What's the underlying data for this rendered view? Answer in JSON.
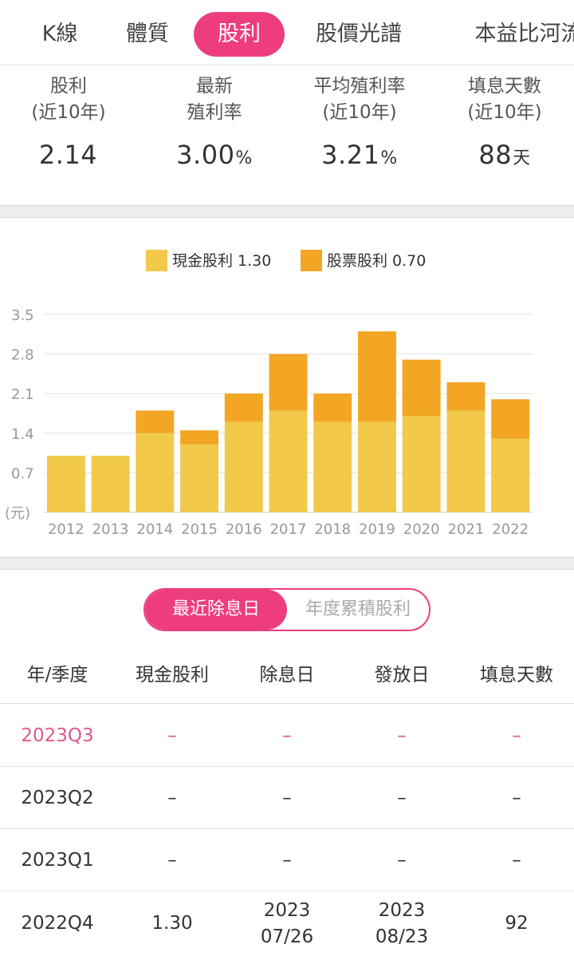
{
  "tabs": [
    {
      "label": "K線",
      "active": false
    },
    {
      "label": "體質",
      "active": false
    },
    {
      "label": "股利",
      "active": true
    },
    {
      "label": "股價光譜",
      "active": false
    },
    {
      "label": "本益比河流",
      "active": false
    }
  ],
  "stats": [
    {
      "label": "股利\n(近10年)",
      "value": "2.14",
      "unit": ""
    },
    {
      "label": "最新\n殖利率",
      "value": "3.00",
      "unit": "%"
    },
    {
      "label": "平均殖利率\n(近10年)",
      "value": "3.21",
      "unit": "%"
    },
    {
      "label": "填息天數\n(近10年)",
      "value": "88",
      "unit": "天"
    }
  ],
  "chart_data": {
    "type": "bar",
    "stacked": true,
    "categories": [
      "2012",
      "2013",
      "2014",
      "2015",
      "2016",
      "2017",
      "2018",
      "2019",
      "2020",
      "2021",
      "2022"
    ],
    "series": [
      {
        "name": "現金股利 1.30",
        "color": "#f2c94a",
        "values": [
          1.0,
          1.0,
          1.4,
          1.2,
          1.6,
          1.8,
          1.6,
          1.6,
          1.7,
          1.8,
          1.3
        ]
      },
      {
        "name": "股票股利 0.70",
        "color": "#f2a623",
        "values": [
          0,
          0,
          0.4,
          0.25,
          0.5,
          1.0,
          0.5,
          1.6,
          1.0,
          0.5,
          0.7
        ]
      }
    ],
    "yticks": [
      "3.5",
      "2.8",
      "2.1",
      "1.4",
      "0.7"
    ],
    "ylim": [
      0,
      3.5
    ],
    "ylabel": "(元)",
    "grid": true,
    "legend": "top-center"
  },
  "toggle": {
    "active": "最近除息日",
    "inactive": "年度累積股利"
  },
  "table": {
    "headers": [
      "年/季度",
      "現金股利",
      "除息日",
      "發放日",
      "填息天數"
    ],
    "rows": [
      [
        "2023Q3",
        "–",
        "–",
        "–",
        "–"
      ],
      [
        "2023Q2",
        "–",
        "–",
        "–",
        "–"
      ],
      [
        "2023Q1",
        "–",
        "–",
        "–",
        "–"
      ],
      [
        "2022Q4",
        "1.30",
        "2023\n07/26",
        "2023\n08/23",
        "92"
      ]
    ]
  },
  "colors": {
    "accent": "#ee3d7e",
    "cash": "#f2c94a",
    "stock": "#f2a623",
    "highlight_row": "#e0588a"
  }
}
